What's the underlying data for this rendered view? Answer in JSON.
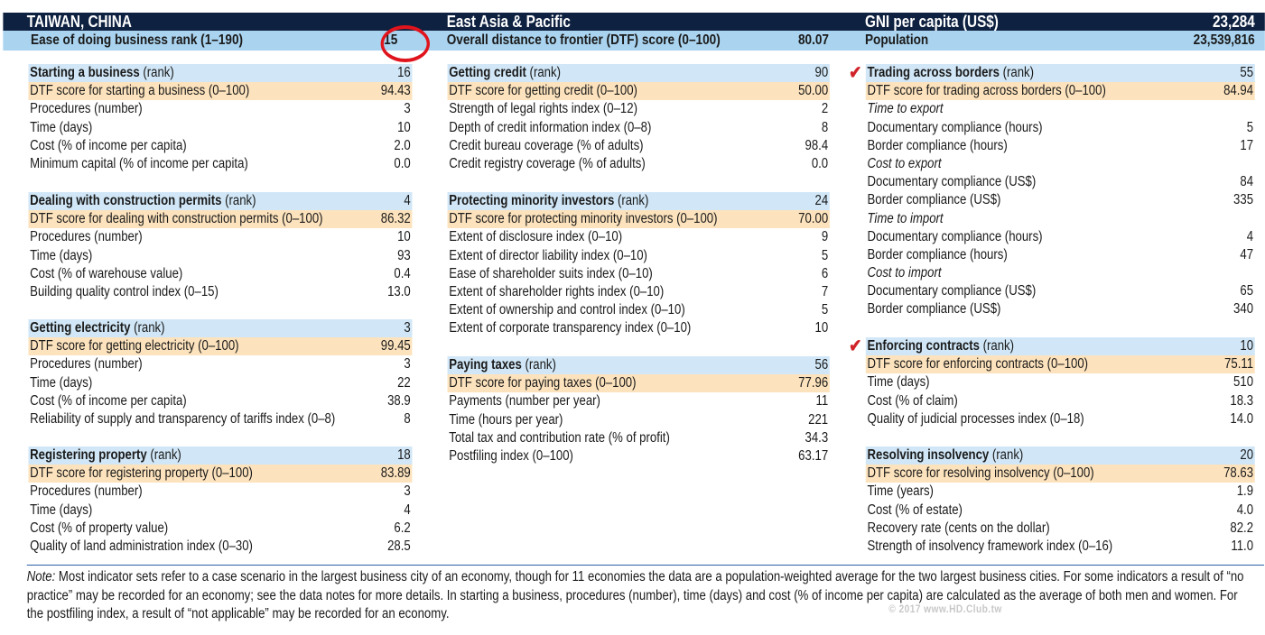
{
  "header": {
    "economy": "TAIWAN, CHINA",
    "region": "East Asia & Pacific",
    "gni_label": "GNI per capita (US$)",
    "gni_value": "23,284",
    "rank_label": "Ease of doing business rank (1–190)",
    "rank_value": "15",
    "dtf_label": "Overall distance to frontier (DTF) score (0–100)",
    "dtf_value": "80.07",
    "pop_label": "Population",
    "pop_value": "23,539,816"
  },
  "sections": {
    "starting": {
      "title": "Starting a business",
      "suffix": " (rank)",
      "rank": "16",
      "rows": [
        [
          "DTF score for starting a business (0–100)",
          "94.43"
        ],
        [
          "Procedures (number)",
          "3"
        ],
        [
          "Time (days)",
          "10"
        ],
        [
          "Cost (% of income per capita)",
          "2.0"
        ],
        [
          "Minimum capital (% of income per capita)",
          "0.0"
        ]
      ]
    },
    "construction": {
      "title": "Dealing with construction permits",
      "suffix": " (rank)",
      "rank": "4",
      "rows": [
        [
          "DTF score for dealing with construction permits (0–100)",
          "86.32"
        ],
        [
          "Procedures (number)",
          "10"
        ],
        [
          "Time (days)",
          "93"
        ],
        [
          "Cost (% of warehouse value)",
          "0.4"
        ],
        [
          "Building quality control index (0–15)",
          "13.0"
        ]
      ]
    },
    "electricity": {
      "title": "Getting electricity",
      "suffix": " (rank)",
      "rank": "3",
      "rows": [
        [
          "DTF score for getting electricity (0–100)",
          "99.45"
        ],
        [
          "Procedures (number)",
          "3"
        ],
        [
          "Time (days)",
          "22"
        ],
        [
          "Cost (% of income per capita)",
          "38.9"
        ],
        [
          "Reliability of supply and transparency of tariffs index (0–8)",
          "8"
        ]
      ]
    },
    "property": {
      "title": "Registering property",
      "suffix": " (rank)",
      "rank": "18",
      "rows": [
        [
          "DTF score for registering property (0–100)",
          "83.89"
        ],
        [
          "Procedures (number)",
          "3"
        ],
        [
          "Time (days)",
          "4"
        ],
        [
          "Cost (% of property value)",
          "6.2"
        ],
        [
          "Quality of land administration index (0–30)",
          "28.5"
        ]
      ]
    },
    "credit": {
      "title": "Getting credit",
      "suffix": " (rank)",
      "rank": "90",
      "rows": [
        [
          "DTF score for getting credit (0–100)",
          "50.00"
        ],
        [
          "Strength of legal rights index (0–12)",
          "2"
        ],
        [
          "Depth of credit information index (0–8)",
          "8"
        ],
        [
          "Credit bureau coverage (% of adults)",
          "98.4"
        ],
        [
          "Credit registry coverage (% of adults)",
          "0.0"
        ]
      ]
    },
    "investors": {
      "title": "Protecting minority investors",
      "suffix": " (rank)",
      "rank": "24",
      "rows": [
        [
          "DTF score for protecting minority investors (0–100)",
          "70.00"
        ],
        [
          "Extent of disclosure index (0–10)",
          "9"
        ],
        [
          "Extent of director liability index (0–10)",
          "5"
        ],
        [
          "Ease of shareholder suits index (0–10)",
          "6"
        ],
        [
          "Extent of shareholder rights index (0–10)",
          "7"
        ],
        [
          "Extent of ownership and control index (0–10)",
          "5"
        ],
        [
          "Extent of corporate transparency index (0–10)",
          "10"
        ]
      ]
    },
    "taxes": {
      "title": "Paying taxes",
      "suffix": " (rank)",
      "rank": "56",
      "rows": [
        [
          "DTF score for paying taxes (0–100)",
          "77.96"
        ],
        [
          "Payments (number per year)",
          "11"
        ],
        [
          "Time (hours per year)",
          "221"
        ],
        [
          "Total tax and contribution rate (% of profit)",
          "34.3"
        ],
        [
          "Postfiling index (0–100)",
          "63.17"
        ]
      ]
    },
    "trading": {
      "title": "Trading across borders",
      "suffix": " (rank)",
      "rank": "55",
      "checked": true,
      "rows": [
        [
          "DTF score for trading across borders (0–100)",
          "84.94"
        ],
        [
          "Time to export",
          ""
        ],
        [
          "Documentary compliance (hours)",
          "5"
        ],
        [
          "Border compliance (hours)",
          "17"
        ],
        [
          "Cost to export",
          ""
        ],
        [
          "Documentary compliance (US$)",
          "84"
        ],
        [
          "Border compliance (US$)",
          "335"
        ],
        [
          "Time to import",
          ""
        ],
        [
          "Documentary compliance (hours)",
          "4"
        ],
        [
          "Border compliance (hours)",
          "47"
        ],
        [
          "Cost to import",
          ""
        ],
        [
          "Documentary compliance (US$)",
          "65"
        ],
        [
          "Border compliance (US$)",
          "340"
        ]
      ]
    },
    "contracts": {
      "title": "Enforcing contracts",
      "suffix": " (rank)",
      "rank": "10",
      "checked": true,
      "rows": [
        [
          "DTF score for enforcing contracts (0–100)",
          "75.11"
        ],
        [
          "Time (days)",
          "510"
        ],
        [
          "Cost (% of claim)",
          "18.3"
        ],
        [
          "Quality of judicial processes index (0–18)",
          "14.0"
        ]
      ]
    },
    "insolvency": {
      "title": "Resolving insolvency",
      "suffix": " (rank)",
      "rank": "20",
      "rows": [
        [
          "DTF score for resolving insolvency (0–100)",
          "78.63"
        ],
        [
          "Time (years)",
          "1.9"
        ],
        [
          "Cost (% of estate)",
          "4.0"
        ],
        [
          "Recovery rate (cents on the dollar)",
          "82.2"
        ],
        [
          "Strength of insolvency framework index (0–16)",
          "11.0"
        ]
      ]
    }
  },
  "note": {
    "label": "Note:",
    "text": " Most indicator sets refer to a case scenario in the largest business city of an economy, though for 11 economies the data are a population-weighted average for the two largest business cities. For some indicators a result of “no practice” may be recorded for an economy; see the data notes for more details. In starting a business, procedures (number), time (days) and cost (% of income per capita) are calculated as the average of both men and women. For the postfiling index, a result of “not applicable” may be recorded for an economy."
  },
  "watermark": "© 2017 www.HD.Club.tw",
  "colors": {
    "header": "#0e2140",
    "subheader": "#a9d3ef",
    "section_title": "#d1e7f7",
    "dtf_row": "#fde3bd",
    "check": "#d0232a"
  }
}
